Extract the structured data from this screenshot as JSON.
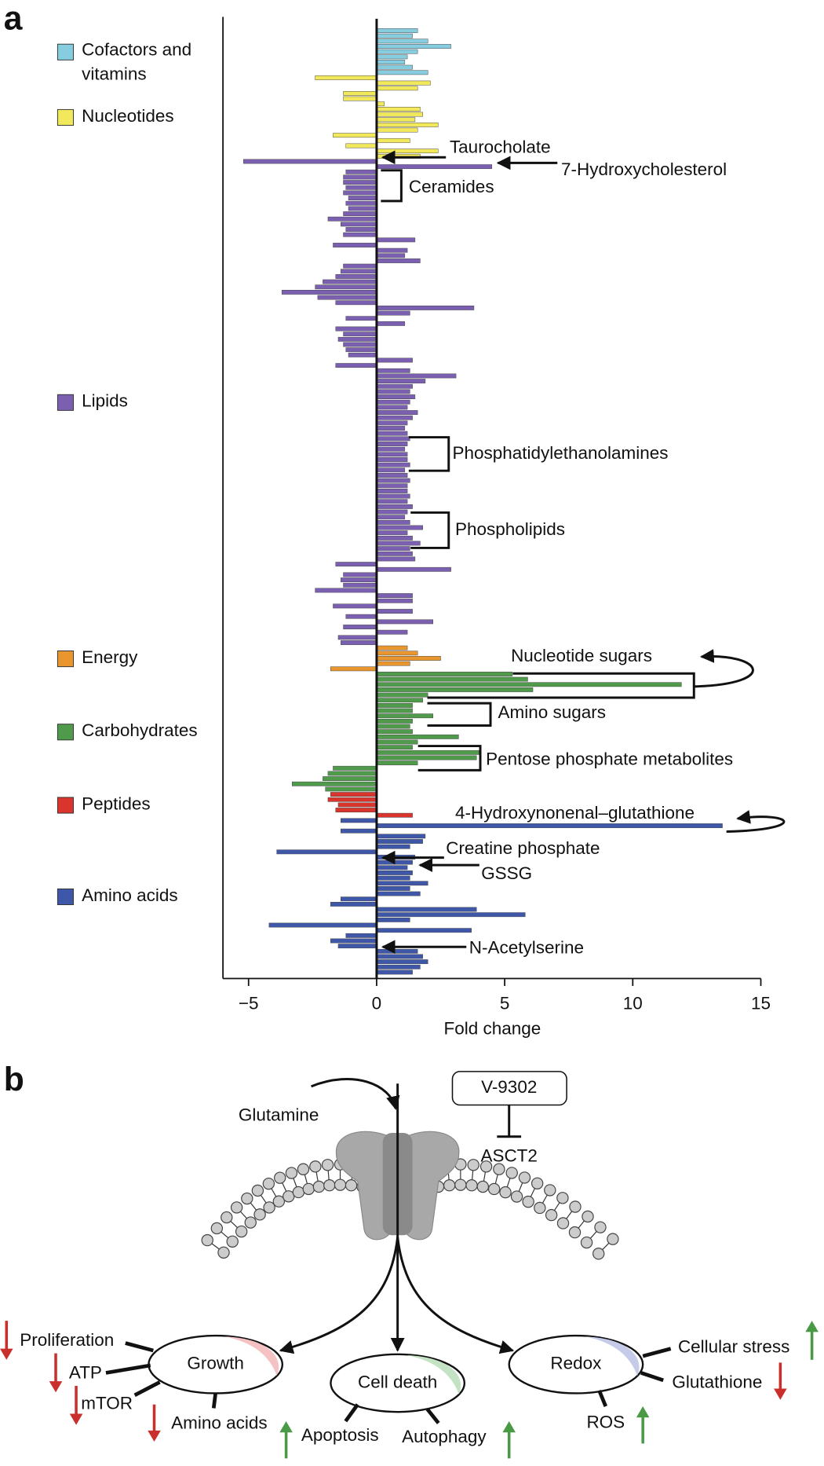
{
  "chart_data": {
    "type": "bar",
    "orientation": "horizontal",
    "panel_label": "a",
    "x_label": "Fold change",
    "xlim": [
      -6,
      15
    ],
    "xticks": [
      {
        "value": -5,
        "label": "−5"
      },
      0,
      5,
      10,
      15
    ],
    "series": [
      {
        "name": "Cofactors and vitamins",
        "color": "#86cde0",
        "values": [
          1.6,
          1.4,
          2.0,
          2.9,
          1.6,
          1.2,
          1.1,
          1.4,
          2.0
        ]
      },
      {
        "name": "Nucleotides",
        "color": "#f2e85c",
        "values": [
          -2.4,
          2.1,
          1.6,
          -1.3,
          -1.3,
          0.3,
          1.7,
          1.8,
          1.5,
          2.4,
          1.6,
          -1.7,
          1.3,
          -1.2,
          2.4,
          1.7
        ]
      },
      {
        "name": "Lipids",
        "color": "#7b60b2",
        "values": [
          -5.2,
          4.5,
          -1.2,
          -1.3,
          -1.3,
          -1.2,
          -1.3,
          -1.1,
          -1.2,
          -1.1,
          -1.3,
          -1.9,
          -1.4,
          -1.2,
          -1.3,
          1.5,
          -1.7,
          1.2,
          1.1,
          1.7,
          -1.3,
          -1.4,
          -1.6,
          -2.1,
          -2.4,
          -3.7,
          -2.3,
          -1.6,
          3.8,
          1.3,
          -1.2,
          1.1,
          -1.6,
          -1.3,
          -1.5,
          -1.3,
          -1.2,
          -1.1,
          1.4,
          -1.6,
          1.3,
          3.1,
          1.9,
          1.4,
          1.3,
          1.5,
          1.3,
          1.2,
          1.6,
          1.4,
          1.2,
          1.1,
          1.2,
          1.3,
          1.2,
          1.1,
          1.2,
          1.2,
          1.3,
          1.1,
          1.2,
          1.3,
          1.2,
          1.2,
          1.3,
          1.2,
          1.4,
          1.2,
          1.1,
          1.3,
          1.8,
          1.2,
          1.4,
          1.7,
          1.3,
          1.4,
          1.5,
          -1.6,
          2.9,
          -1.3,
          -1.4,
          -1.3,
          -2.4,
          1.4,
          1.4,
          -1.7,
          1.4,
          -1.2,
          2.2,
          -1.3,
          1.2,
          -1.5,
          -1.4
        ]
      },
      {
        "name": "Energy",
        "color": "#e9962f",
        "values": [
          1.2,
          1.6,
          2.5,
          1.3,
          -1.8
        ]
      },
      {
        "name": "Carbohydrates",
        "color": "#4f9b4b",
        "values": [
          5.3,
          5.9,
          11.9,
          6.1,
          2.0,
          1.8,
          1.4,
          1.4,
          2.2,
          1.4,
          1.3,
          1.4,
          3.2,
          1.6,
          1.4,
          4.0,
          3.9,
          1.6,
          -1.7,
          -1.9,
          -2.1,
          -3.3,
          -2.0
        ]
      },
      {
        "name": "Peptides",
        "color": "#d9352c",
        "values": [
          -1.8,
          -1.9,
          -1.5,
          -1.6,
          1.4
        ]
      },
      {
        "name": "Amino acids",
        "color": "#3f57a9",
        "values": [
          -1.4,
          13.5,
          -1.4,
          1.9,
          1.8,
          1.3,
          -3.9,
          1.5,
          1.4,
          1.2,
          1.4,
          1.3,
          2.0,
          1.3,
          1.7,
          -1.4,
          -1.8,
          3.9,
          5.8,
          1.3,
          -4.2,
          3.7,
          -1.2,
          -1.8,
          -1.5,
          1.6,
          1.8,
          2.0,
          1.7,
          1.4
        ]
      }
    ],
    "annotations": [
      {
        "text": "Taurocholate"
      },
      {
        "text": "7-Hydroxycholesterol"
      },
      {
        "text": "Ceramides"
      },
      {
        "text": "Phosphatidylethanolamines"
      },
      {
        "text": "Phospholipids"
      },
      {
        "text": "Nucleotide sugars"
      },
      {
        "text": "Amino sugars"
      },
      {
        "text": "Pentose phosphate metabolites"
      },
      {
        "text": "4-Hydroxynonenal–glutathione"
      },
      {
        "text": "Creatine phosphate"
      },
      {
        "text": "GSSG"
      },
      {
        "text": "N-Acetylserine"
      }
    ]
  },
  "diagram": {
    "panel_label": "b",
    "inhibitor": "V-9302",
    "transporter": "ASCT2",
    "substrate": "Glutamine",
    "nodes": [
      {
        "label": "Growth"
      },
      {
        "label": "Cell death"
      },
      {
        "label": "Redox"
      }
    ],
    "effects": [
      {
        "label": "Proliferation"
      },
      {
        "label": "ATP"
      },
      {
        "label": "mTOR"
      },
      {
        "label": "Amino acids"
      },
      {
        "label": "Apoptosis"
      },
      {
        "label": "Autophagy"
      },
      {
        "label": "Cellular stress"
      },
      {
        "label": "Glutathione"
      },
      {
        "label": "ROS"
      }
    ]
  }
}
